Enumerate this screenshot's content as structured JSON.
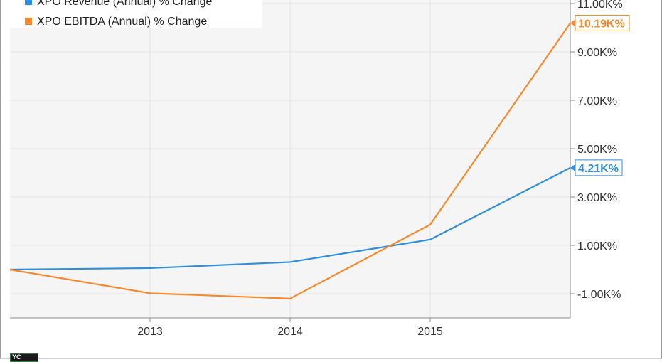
{
  "chart_data": {
    "type": "line",
    "categories_x": [
      "2013",
      "2014",
      "2015"
    ],
    "x_domain": [
      2012.0,
      2016.0
    ],
    "x": [
      2012.0,
      2013.0,
      2014.0,
      2015.0,
      2016.0
    ],
    "ylim": [
      -2000,
      11000
    ],
    "y_ticks": [
      -1000,
      1000,
      3000,
      5000,
      7000,
      9000,
      11000
    ],
    "y_tick_labels": [
      "-1.00K%",
      "1.00K%",
      "3.00K%",
      "5.00K%",
      "7.00K%",
      "9.00K%",
      "11.00K%"
    ],
    "grid": "horizontal",
    "legend_position": "top-left",
    "series": [
      {
        "name": "XPO Revenue (Annual) % Change",
        "color": "#2e8fdf",
        "values": [
          0,
          60,
          310,
          1240,
          4210
        ],
        "end_label": "4.21K%"
      },
      {
        "name": "XPO EBITDA (Annual) % Change",
        "color": "#f7892a",
        "values": [
          0,
          -980,
          -1200,
          1860,
          10190
        ],
        "end_label": "10.19K%"
      }
    ]
  }
}
